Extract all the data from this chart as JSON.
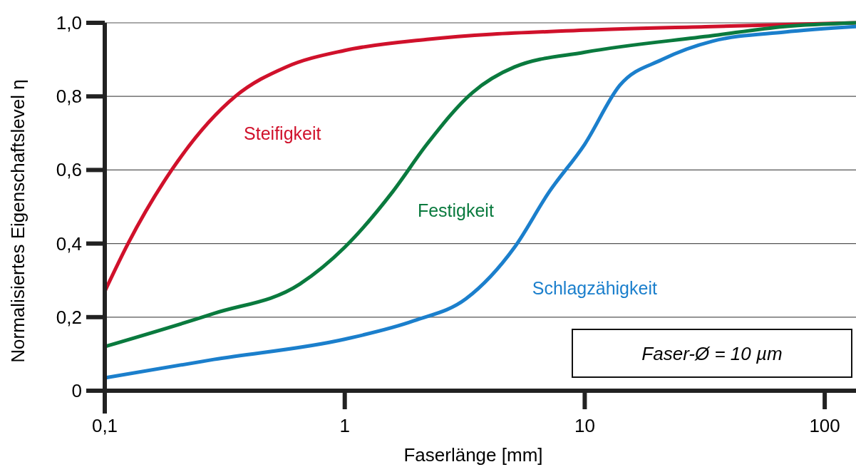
{
  "chart_data": {
    "type": "line",
    "xlabel": "Faserlänge [mm]",
    "ylabel": "Normalisiertes Eigenschaftslevel η",
    "log": "x",
    "grid": "y",
    "xlim": [
      0.1,
      135
    ],
    "ylim": [
      0,
      1
    ],
    "xticks": [
      {
        "value": 0.1,
        "label": "0,1"
      },
      1,
      10,
      100
    ],
    "yticks": [
      0,
      {
        "value": 0.2,
        "label": "0,2"
      },
      {
        "value": 0.4,
        "label": "0,4"
      },
      {
        "value": 0.6,
        "label": "0,6"
      },
      {
        "value": 0.8,
        "label": "0,8"
      },
      {
        "value": 1,
        "label": "1,0"
      }
    ],
    "series": [
      {
        "name": "Steifigkeit",
        "color": "#d0112b",
        "x": [
          0.1,
          0.125,
          0.19,
          0.35,
          0.57,
          1,
          2.2,
          10,
          34,
          135
        ],
        "values": [
          0.27,
          0.4,
          0.6,
          0.8,
          0.88,
          0.925,
          0.955,
          0.98,
          0.99,
          1.0
        ]
      },
      {
        "name": "Festigkeit",
        "color": "#0a7a3e",
        "x": [
          0.1,
          0.285,
          0.65,
          1,
          1.58,
          2.2,
          3.4,
          5.1,
          10,
          34,
          68,
          135
        ],
        "values": [
          0.12,
          0.21,
          0.29,
          0.39,
          0.54,
          0.67,
          0.81,
          0.88,
          0.92,
          0.965,
          0.99,
          1.0
        ]
      },
      {
        "name": "Schlagzähigkeit",
        "color": "#1b7fcc",
        "x": [
          0.1,
          0.285,
          1,
          1.94,
          3.2,
          5.1,
          7.1,
          10,
          14,
          21,
          34,
          68,
          135
        ],
        "values": [
          0.035,
          0.085,
          0.14,
          0.19,
          0.25,
          0.39,
          0.54,
          0.67,
          0.83,
          0.9,
          0.95,
          0.975,
          0.99
        ]
      }
    ],
    "annotations": [
      "Faser-Ø = 10 µm"
    ]
  }
}
